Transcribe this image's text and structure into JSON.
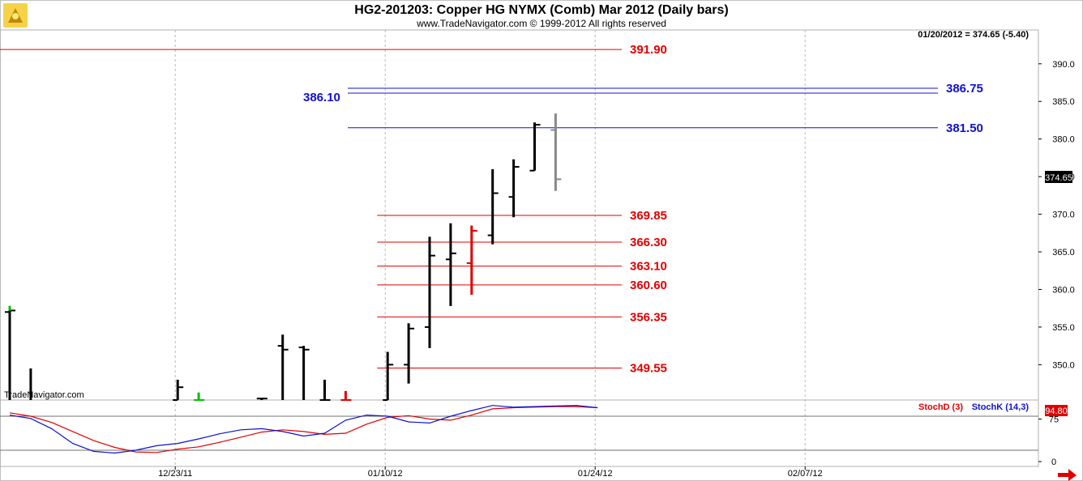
{
  "chart_data": {
    "type": "ohlc",
    "title": "HG2-201203:  Copper HG NYMX (Comb) Mar 2012  (Daily bars)",
    "subtitle": "www.TradeNavigator.com © 1999-2012 All rights reserved",
    "watermark": "TradeNavigator.com",
    "last_quote": "01/20/2012 = 374.65 (-5.40)",
    "last_price_label": "374.65",
    "price_axis": {
      "ylim": [
        345.3,
        394.5
      ],
      "ticks": [
        "350.0",
        "355.0",
        "360.0",
        "365.0",
        "370.0",
        "375.0",
        "380.0",
        "385.0",
        "390.0"
      ]
    },
    "date_axis": {
      "ticks": [
        "12/23/11",
        "01/10/12",
        "01/24/12",
        "02/07/12"
      ],
      "tick_index": [
        8,
        18,
        28,
        38
      ]
    },
    "bars": [
      {
        "i": 0,
        "o": 357.0,
        "h": 357.5,
        "l": 345.0,
        "c": 357.2,
        "color": "#000000",
        "up_tick": "#00c000"
      },
      {
        "i": 1,
        "o": 345.0,
        "h": 349.5,
        "l": 345.0,
        "c": 345.0,
        "color": "#000000"
      },
      {
        "i": 8,
        "o": 345.3,
        "h": 348.0,
        "l": 345.3,
        "c": 347.0,
        "color": "#000000"
      },
      {
        "i": 9,
        "o": 345.3,
        "h": 346.3,
        "l": 345.3,
        "c": 345.3,
        "color": "#00c000"
      },
      {
        "i": 12,
        "o": 345.5,
        "h": 345.5,
        "l": 345.3,
        "c": 345.5,
        "color": "#000000"
      },
      {
        "i": 13,
        "o": 352.5,
        "h": 354.0,
        "l": 345.3,
        "c": 352.0,
        "color": "#000000"
      },
      {
        "i": 14,
        "o": 352.3,
        "h": 352.5,
        "l": 345.3,
        "c": 352.0,
        "color": "#000000"
      },
      {
        "i": 15,
        "o": 345.3,
        "h": 348.0,
        "l": 345.3,
        "c": 345.3,
        "color": "#000000"
      },
      {
        "i": 16,
        "o": 345.3,
        "h": 346.5,
        "l": 345.3,
        "c": 345.3,
        "color": "#e00000"
      },
      {
        "i": 18,
        "o": 345.3,
        "h": 351.7,
        "l": 345.3,
        "c": 350.0,
        "color": "#000000"
      },
      {
        "i": 19,
        "o": 350.0,
        "h": 355.5,
        "l": 347.5,
        "c": 354.8,
        "color": "#000000"
      },
      {
        "i": 20,
        "o": 355.0,
        "h": 367.0,
        "l": 352.2,
        "c": 364.5,
        "color": "#000000"
      },
      {
        "i": 21,
        "o": 364.0,
        "h": 368.8,
        "l": 357.8,
        "c": 364.8,
        "color": "#000000"
      },
      {
        "i": 22,
        "o": 363.5,
        "h": 368.5,
        "l": 359.3,
        "c": 367.8,
        "color": "#e00000"
      },
      {
        "i": 23,
        "o": 367.2,
        "h": 376.0,
        "l": 366.0,
        "c": 372.8,
        "color": "#000000"
      },
      {
        "i": 24,
        "o": 372.3,
        "h": 377.3,
        "l": 369.6,
        "c": 376.3,
        "color": "#000000"
      },
      {
        "i": 25,
        "o": 375.8,
        "h": 382.2,
        "l": 375.8,
        "c": 381.9,
        "color": "#000000"
      },
      {
        "i": 26,
        "o": 381.2,
        "h": 383.4,
        "l": 373.1,
        "c": 374.65,
        "color": "#888888"
      }
    ],
    "levels_red": [
      {
        "value": 391.9,
        "label": "391.90",
        "from_i": -0.5
      },
      {
        "value": 369.85,
        "label": "369.85",
        "from_i": 17.5
      },
      {
        "value": 366.3,
        "label": "366.30",
        "from_i": 17.5
      },
      {
        "value": 363.1,
        "label": "363.10",
        "from_i": 17.5
      },
      {
        "value": 360.6,
        "label": "360.60",
        "from_i": 17.5
      },
      {
        "value": 356.35,
        "label": "356.35",
        "from_i": 17.5
      },
      {
        "value": 349.55,
        "label": "349.55",
        "from_i": 17.5
      }
    ],
    "levels_blue": [
      {
        "value": 386.75,
        "label": "386.75",
        "side": "right"
      },
      {
        "value": 386.1,
        "label": "386.10",
        "side": "left"
      },
      {
        "value": 381.5,
        "label": "381.50",
        "side": "right"
      }
    ],
    "stochastic": {
      "ylim": [
        0,
        100
      ],
      "ticks": [
        "0",
        "75"
      ],
      "ref_lines": [
        20,
        80
      ],
      "last_value_label": "94.80",
      "series": [
        {
          "name": "StochD (3)",
          "color": "#e00000",
          "values": [
            86,
            80,
            69,
            53,
            37,
            25,
            17,
            16,
            22,
            26,
            34,
            43,
            52,
            56,
            53,
            48,
            50,
            66,
            78,
            81,
            75,
            73,
            82,
            93,
            95,
            96,
            97,
            97,
            95
          ]
        },
        {
          "name": "StochK (14,3)",
          "color": "#1010d0",
          "values": [
            82,
            76,
            58,
            32,
            18,
            15,
            20,
            28,
            32,
            40,
            49,
            56,
            58,
            53,
            45,
            50,
            73,
            82,
            80,
            70,
            68,
            80,
            90,
            99,
            96,
            97,
            98,
            99,
            95
          ]
        }
      ]
    }
  }
}
